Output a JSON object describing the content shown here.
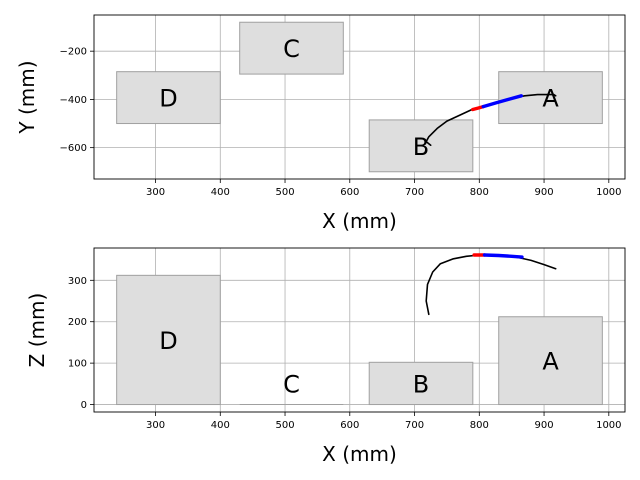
{
  "chart_data": [
    {
      "type": "line",
      "xlabel": "X (mm)",
      "ylabel": "Y (mm)",
      "xlim": [
        205,
        1025
      ],
      "ylim": [
        -730,
        -50
      ],
      "xticks": [
        300,
        400,
        500,
        600,
        700,
        800,
        900,
        1000
      ],
      "yticks": [
        -600,
        -400,
        -200
      ],
      "xtick_labels": [
        "300",
        "400",
        "500",
        "600",
        "700",
        "800",
        "900",
        "1000"
      ],
      "ytick_labels": [
        "−600",
        "−400",
        "−200"
      ],
      "grid": true,
      "colors": {
        "box_fill": "#dedede",
        "box_edge": "#a0a0a0",
        "path": "#000000",
        "start_segment": "#ff0000",
        "end_segment": "#0000ff"
      },
      "boxes": [
        {
          "label": "D",
          "x0": 240,
          "x1": 400,
          "y0": -500,
          "y1": -285
        },
        {
          "label": "C",
          "x0": 430,
          "x1": 590,
          "y0": -295,
          "y1": -80
        },
        {
          "label": "B",
          "x0": 630,
          "x1": 790,
          "y0": -700,
          "y1": -485
        },
        {
          "label": "A",
          "x0": 830,
          "x1": 990,
          "y0": -500,
          "y1": -285
        }
      ],
      "series": [
        {
          "color": "#000000",
          "x": [
            725,
            718,
            722,
            735,
            750,
            770,
            790,
            810,
            830,
            850,
            870,
            890,
            905,
            915,
            918
          ],
          "y": [
            -590,
            -575,
            -555,
            -520,
            -490,
            -465,
            -440,
            -425,
            -410,
            -395,
            -385,
            -380,
            -380,
            -380,
            -385
          ]
        },
        {
          "color": "#ff0000",
          "x": [
            790,
            798,
            806
          ],
          "y": [
            -442,
            -436,
            -430
          ]
        },
        {
          "color": "#0000ff",
          "x": [
            806,
            825,
            845,
            865
          ],
          "y": [
            -430,
            -415,
            -400,
            -385
          ]
        }
      ]
    },
    {
      "type": "line",
      "xlabel": "X (mm)",
      "ylabel": "Z (mm)",
      "xlim": [
        205,
        1025
      ],
      "ylim": [
        -18,
        378
      ],
      "xticks": [
        300,
        400,
        500,
        600,
        700,
        800,
        900,
        1000
      ],
      "yticks": [
        0,
        100,
        200,
        300
      ],
      "xtick_labels": [
        "300",
        "400",
        "500",
        "600",
        "700",
        "800",
        "900",
        "1000"
      ],
      "ytick_labels": [
        "0",
        "100",
        "200",
        "300"
      ],
      "grid": true,
      "colors": {
        "box_fill": "#dedede",
        "box_edge": "#a0a0a0",
        "path": "#000000",
        "start_segment": "#ff0000",
        "end_segment": "#0000ff"
      },
      "boxes": [
        {
          "label": "D",
          "x0": 240,
          "x1": 400,
          "y0": 0,
          "y1": 312
        },
        {
          "label": "C",
          "x0": 430,
          "x1": 590,
          "y0": 0,
          "y1": 0
        },
        {
          "label": "B",
          "x0": 630,
          "x1": 790,
          "y0": 0,
          "y1": 102
        },
        {
          "label": "A",
          "x0": 830,
          "x1": 990,
          "y0": 0,
          "y1": 212
        }
      ],
      "series": [
        {
          "color": "#000000",
          "x": [
            722,
            718,
            720,
            728,
            740,
            760,
            780,
            800,
            830,
            860,
            880,
            900,
            918
          ],
          "y": [
            218,
            250,
            290,
            320,
            340,
            352,
            358,
            361,
            361,
            355,
            348,
            338,
            328
          ]
        },
        {
          "color": "#ff0000",
          "x": [
            792,
            800,
            808
          ],
          "y": [
            361,
            361,
            361
          ]
        },
        {
          "color": "#0000ff",
          "x": [
            808,
            830,
            850,
            866
          ],
          "y": [
            361,
            360,
            358,
            356
          ]
        }
      ]
    }
  ]
}
